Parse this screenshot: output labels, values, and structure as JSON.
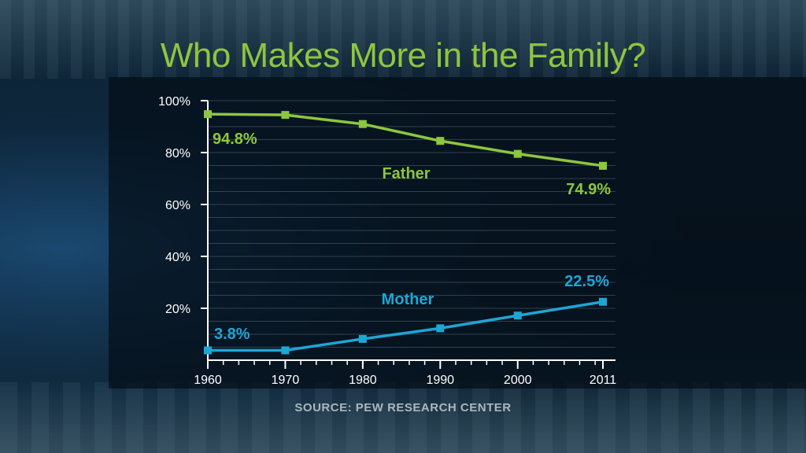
{
  "title": "Who Makes More in the Family?",
  "source": "SOURCE: PEW RESEARCH CENTER",
  "chart_data": {
    "type": "line",
    "x": [
      1960,
      1970,
      1980,
      1990,
      2000,
      2011
    ],
    "xtick_labels": [
      "1960",
      "1970",
      "1980",
      "1990",
      "2000",
      "2011"
    ],
    "ytick_labels": [
      "100%",
      "80%",
      "60%",
      "40%",
      "20%"
    ],
    "ytick_values": [
      100,
      80,
      60,
      40,
      20
    ],
    "ylim": [
      0,
      100
    ],
    "grid": true,
    "series": [
      {
        "name": "Father",
        "color": "#8dc63f",
        "values": [
          94.8,
          94.5,
          91.0,
          84.5,
          79.5,
          74.9
        ]
      },
      {
        "name": "Mother",
        "color": "#1ea6d4",
        "values": [
          3.8,
          3.8,
          8.2,
          12.3,
          17.2,
          22.5
        ]
      }
    ],
    "annotations": [
      {
        "series": "Father",
        "point": "first",
        "text": "94.8%"
      },
      {
        "series": "Father",
        "point": "last",
        "text": "74.9%"
      },
      {
        "series": "Mother",
        "point": "first",
        "text": "3.8%"
      },
      {
        "series": "Mother",
        "point": "last",
        "text": "22.5%"
      }
    ]
  }
}
